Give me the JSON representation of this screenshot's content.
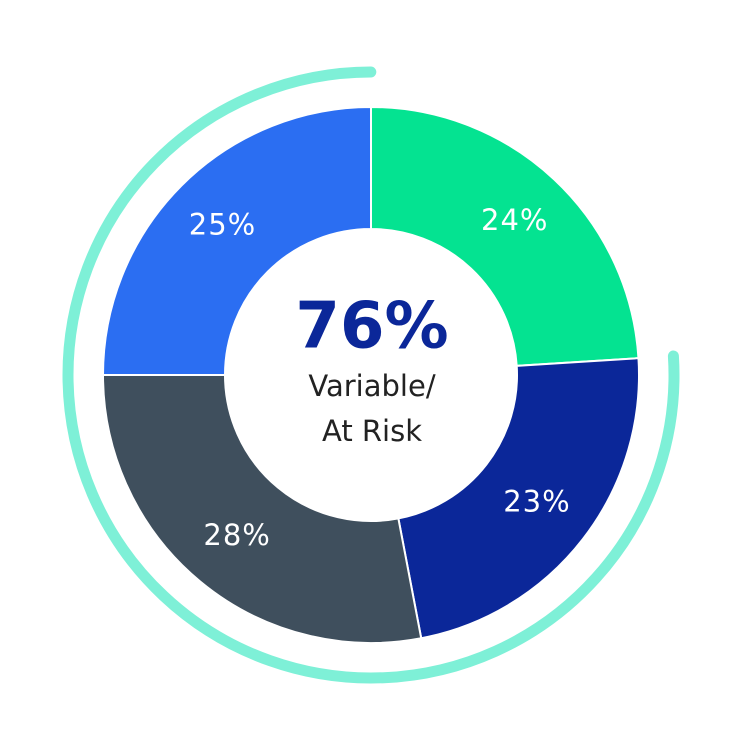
{
  "chart_data": {
    "type": "donut",
    "values": [
      24,
      23,
      28,
      25
    ],
    "value_labels": [
      "24%",
      "23%",
      "28%",
      "25%"
    ],
    "colors": [
      "#04e391",
      "#0b2799",
      "#3f4f5d",
      "#2b6ef2"
    ],
    "center_value": {
      "value": 76,
      "label": "76%"
    },
    "center_text": [
      "Variable/",
      "At Risk"
    ],
    "highlight_color": "#7ef0d7"
  }
}
